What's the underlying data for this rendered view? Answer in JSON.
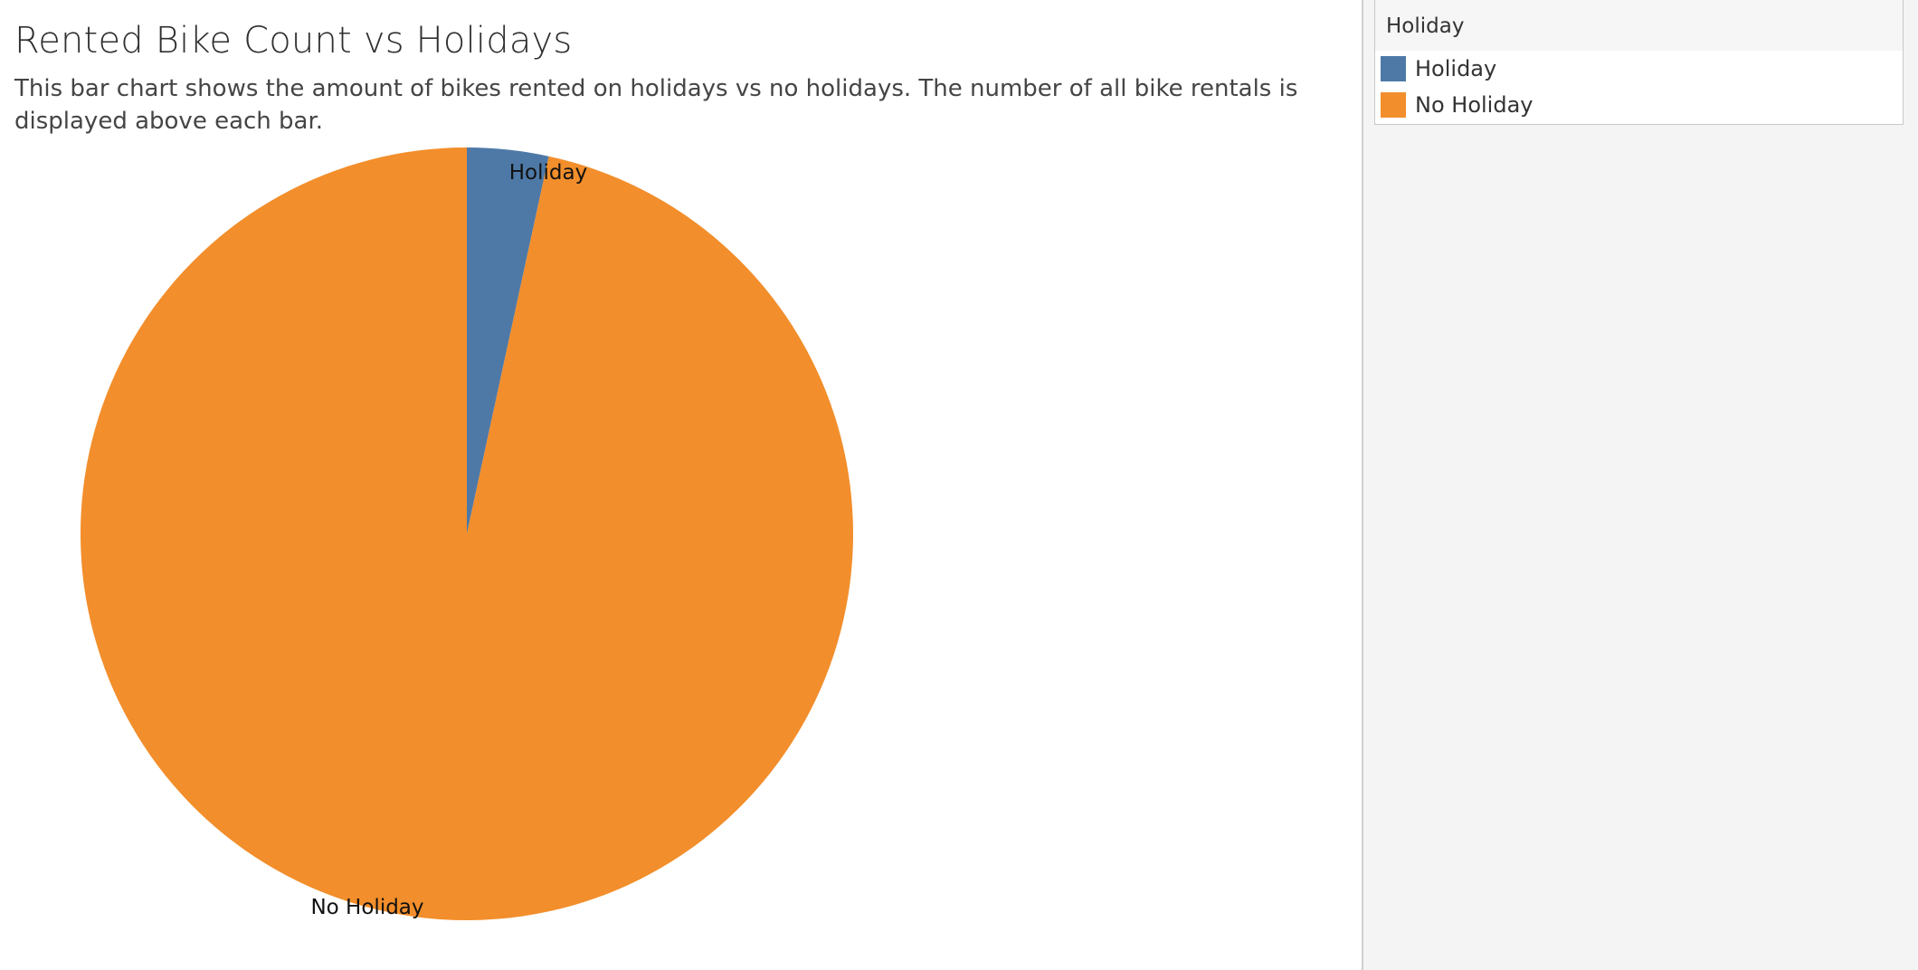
{
  "chart_data": {
    "type": "pie",
    "title": "Rented Bike Count vs Holidays",
    "subtitle": "This bar chart shows the amount of bikes rented on holidays vs no holidays. The number of all bike rentals is displayed above each bar.",
    "categories": [
      "Holiday",
      "No Holiday"
    ],
    "values": [
      3.4,
      96.6
    ],
    "colors": [
      "#4e79a7",
      "#f28e2b"
    ],
    "legend": {
      "title": "Holiday",
      "placement": "right",
      "items": [
        {
          "label": "Holiday",
          "color": "#4e79a7"
        },
        {
          "label": "No Holiday",
          "color": "#f28e2b"
        }
      ]
    }
  }
}
